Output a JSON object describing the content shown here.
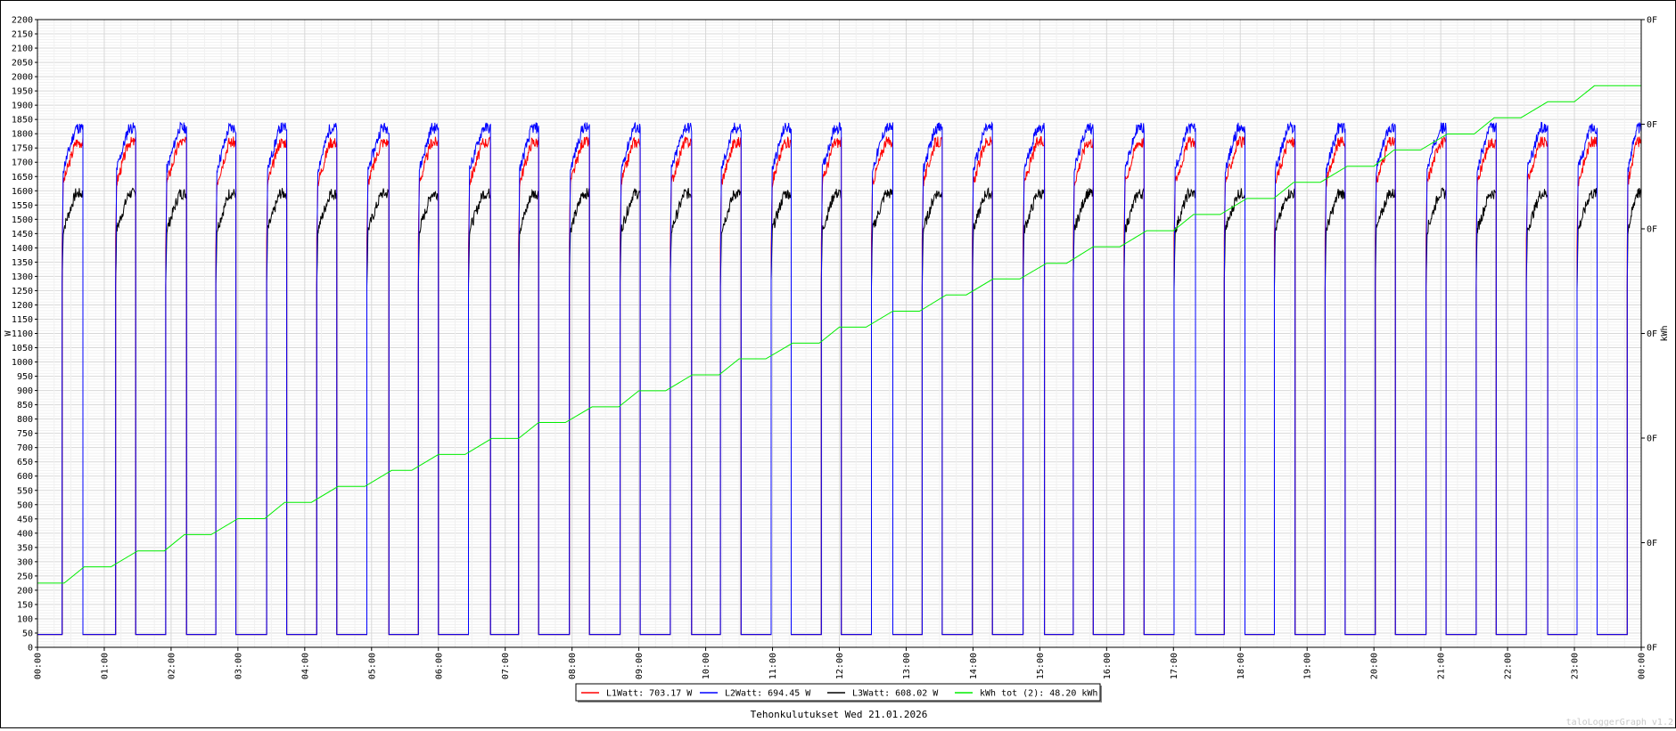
{
  "chart_data": {
    "type": "line",
    "title": "Tehonkulutukset Wed 21.01.2026",
    "watermark": "taloLoggerGraph v1.2",
    "ylabel_left": "W",
    "ylabel_right": "kWh",
    "ylim": [
      0,
      2200
    ],
    "y_major_step": 50,
    "y_minor_step": 10,
    "y_ticks": [
      "0",
      "50",
      "100",
      "150",
      "200",
      "250",
      "300",
      "350",
      "400",
      "450",
      "500",
      "550",
      "600",
      "650",
      "700",
      "750",
      "800",
      "850",
      "900",
      "950",
      "1000",
      "1050",
      "1100",
      "1150",
      "1200",
      "1250",
      "1300",
      "1350",
      "1400",
      "1450",
      "1500",
      "1550",
      "1600",
      "1650",
      "1700",
      "1750",
      "1800",
      "1850",
      "1900",
      "1950",
      "2000",
      "2050",
      "2100",
      "2150",
      "2200"
    ],
    "y2_ticks": [
      "0F",
      "0F",
      "0F",
      "0F",
      "0F",
      "0F",
      "0F"
    ],
    "x_ticks": [
      "00:00",
      "01:00",
      "02:00",
      "03:00",
      "04:00",
      "05:00",
      "06:00",
      "07:00",
      "08:00",
      "09:00",
      "10:00",
      "11:00",
      "12:00",
      "13:00",
      "14:00",
      "15:00",
      "16:00",
      "17:00",
      "18:00",
      "19:00",
      "20:00",
      "21:00",
      "22:00",
      "23:00",
      "00:00"
    ],
    "grid": true,
    "legend_position": "bottom",
    "legend": [
      {
        "text": "L1Watt: 703.17 W",
        "color": "#ff0000"
      },
      {
        "text": "L2Watt: 694.45 W",
        "color": "#0000ff"
      },
      {
        "text": "L3Watt: 608.02 W",
        "color": "#000000"
      },
      {
        "text": "kWh tot (2): 48.20 kWh",
        "color": "#00ee00"
      }
    ],
    "colors": {
      "l1": "#ff0000",
      "l2": "#0000ff",
      "l3": "#000000",
      "kwh": "#00ee00"
    },
    "heating_cycles": {
      "description_units": "hours of day",
      "baseline_w": 45,
      "on_intervals": [
        [
          0.37,
          0.68
        ],
        [
          1.17,
          1.47
        ],
        [
          1.92,
          2.23
        ],
        [
          2.67,
          2.97
        ],
        [
          3.43,
          3.73
        ],
        [
          4.18,
          4.48
        ],
        [
          4.93,
          5.26
        ],
        [
          5.7,
          6.0
        ],
        [
          6.45,
          6.78
        ],
        [
          7.2,
          7.5
        ],
        [
          7.96,
          8.26
        ],
        [
          8.72,
          9.02
        ],
        [
          9.47,
          9.79
        ],
        [
          10.22,
          10.53
        ],
        [
          10.98,
          11.28
        ],
        [
          11.73,
          12.03
        ],
        [
          12.48,
          12.8
        ],
        [
          13.24,
          13.54
        ],
        [
          13.99,
          14.29
        ],
        [
          14.75,
          15.07
        ],
        [
          15.5,
          15.8
        ],
        [
          16.26,
          16.56
        ],
        [
          17.01,
          17.33
        ],
        [
          17.76,
          18.07
        ],
        [
          18.51,
          18.82
        ],
        [
          19.27,
          19.57
        ],
        [
          20.02,
          20.32
        ],
        [
          20.78,
          21.08
        ],
        [
          21.53,
          21.83
        ],
        [
          22.28,
          22.6
        ],
        [
          23.04,
          23.34
        ],
        [
          23.79,
          24.0
        ]
      ],
      "peak_w": {
        "l1": 1770,
        "l2": 1820,
        "l3": 1590
      }
    },
    "kwh_steps": {
      "x": [
        0.0,
        0.4,
        0.7,
        1.1,
        1.5,
        1.9,
        2.2,
        2.6,
        3.0,
        3.4,
        3.7,
        4.1,
        4.5,
        4.9,
        5.3,
        5.6,
        6.0,
        6.4,
        6.8,
        7.2,
        7.5,
        7.9,
        8.3,
        8.7,
        9.0,
        9.4,
        9.8,
        10.2,
        10.5,
        10.9,
        11.3,
        11.7,
        12.0,
        12.4,
        12.8,
        13.2,
        13.6,
        13.9,
        14.3,
        14.7,
        15.1,
        15.4,
        15.8,
        16.2,
        16.6,
        17.0,
        17.3,
        17.7,
        18.1,
        18.5,
        18.8,
        19.2,
        19.6,
        20.0,
        20.3,
        20.7,
        21.1,
        21.5,
        21.8,
        22.2,
        22.6,
        23.0,
        23.3,
        23.7,
        24.0
      ],
      "y": [
        225,
        225,
        282,
        282,
        338,
        338,
        395,
        395,
        451,
        451,
        508,
        508,
        564,
        564,
        620,
        620,
        676,
        676,
        732,
        732,
        788,
        788,
        843,
        843,
        899,
        899,
        955,
        955,
        1011,
        1011,
        1066,
        1066,
        1122,
        1122,
        1178,
        1178,
        1235,
        1235,
        1291,
        1291,
        1346,
        1346,
        1404,
        1404,
        1460,
        1460,
        1517,
        1517,
        1573,
        1573,
        1630,
        1630,
        1686,
        1686,
        1743,
        1743,
        1799,
        1799,
        1856,
        1856,
        1912,
        1912,
        1968,
        1968,
        1968
      ]
    }
  }
}
